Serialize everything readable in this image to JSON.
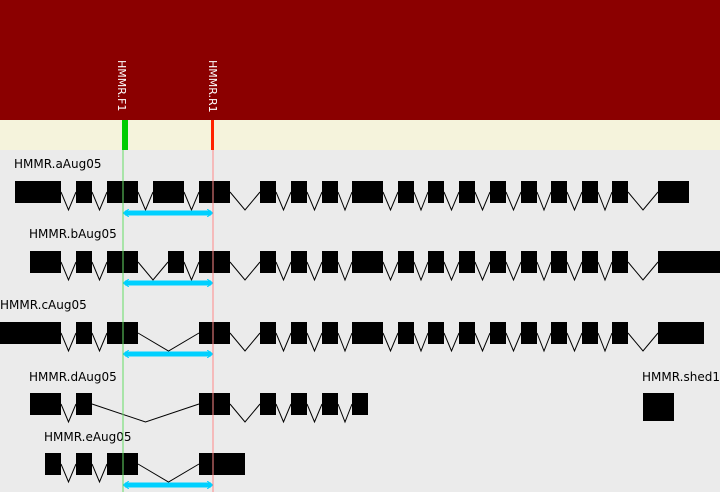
{
  "colors": {
    "header_band": "#8b0000",
    "primer_track": "#f5f3dc",
    "background": "#ebebeb",
    "forward_primer": "#00cc00",
    "reverse_primer": "#ff2200",
    "forward_line": "#66dd66",
    "reverse_line": "#ff8888",
    "amplicon": "#00d0ff",
    "exon": "#000000",
    "intron": "#000000"
  },
  "primers": [
    {
      "name": "HMMR.F1",
      "type": "forward"
    },
    {
      "name": "HMMR.R1",
      "type": "reverse"
    }
  ],
  "transcripts": [
    {
      "name": "HMMR.aAug05",
      "amplicon": true
    },
    {
      "name": "HMMR.bAug05",
      "amplicon": true
    },
    {
      "name": "HMMR.cAug05",
      "amplicon": true
    },
    {
      "name": "HMMR.dAug05",
      "amplicon": false
    },
    {
      "name": "HMMR.eAug05",
      "amplicon": true
    },
    {
      "name": "HMMR.shed1",
      "amplicon": false
    }
  ]
}
